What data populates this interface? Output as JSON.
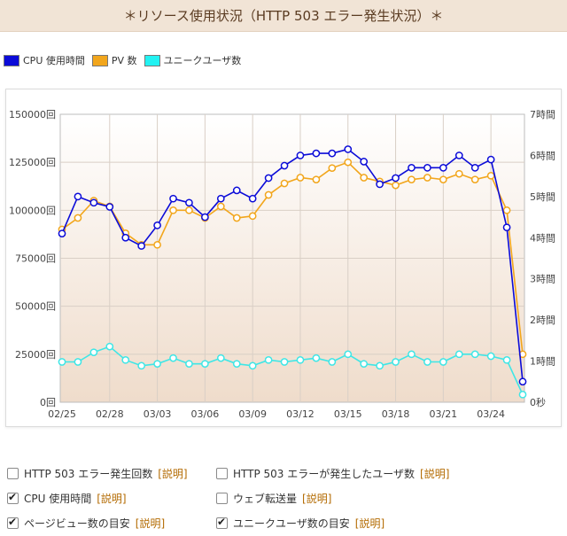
{
  "page_title": "＊リソース使用状況（HTTP 503 エラー発生状況）＊",
  "legend": [
    {
      "label": "CPU 使用時間",
      "color": "#0b0bd8"
    },
    {
      "label": "PV 数",
      "color": "#f2a61c"
    },
    {
      "label": "ユニークユーザ数",
      "color": "#22f2f2"
    }
  ],
  "chart_data": {
    "type": "line",
    "x": [
      "02/25",
      "02/26",
      "02/27",
      "02/28",
      "03/01",
      "03/02",
      "03/03",
      "03/04",
      "03/05",
      "03/06",
      "03/07",
      "03/08",
      "03/09",
      "03/10",
      "03/11",
      "03/12",
      "03/13",
      "03/14",
      "03/15",
      "03/16",
      "03/17",
      "03/18",
      "03/19",
      "03/20",
      "03/21",
      "03/22",
      "03/23",
      "03/24",
      "03/25",
      "03/26"
    ],
    "x_tick_labels": [
      "02/25",
      "02/28",
      "03/03",
      "03/06",
      "03/09",
      "03/12",
      "03/15",
      "03/18",
      "03/21",
      "03/24"
    ],
    "left_axis": {
      "ticks": [
        "0回",
        "25000回",
        "50000回",
        "75000回",
        "100000回",
        "125000回",
        "150000回"
      ],
      "ylim": [
        0,
        150000
      ]
    },
    "right_axis": {
      "ticks": [
        "0秒",
        "1時間",
        "2時間",
        "3時間",
        "4時間",
        "5時間",
        "6時間",
        "7時間"
      ],
      "ylim": [
        0,
        7
      ],
      "unit": "hours"
    },
    "series": [
      {
        "name": "CPU 使用時間",
        "axis": "right",
        "color": "#0b0bd8",
        "values": [
          4.1,
          5.0,
          4.85,
          4.75,
          4.0,
          3.8,
          4.3,
          4.95,
          4.85,
          4.5,
          4.95,
          5.15,
          4.95,
          5.45,
          5.75,
          6.0,
          6.05,
          6.05,
          6.15,
          5.85,
          5.3,
          5.45,
          5.7,
          5.7,
          5.7,
          6.0,
          5.7,
          5.9,
          4.25,
          0.5
        ]
      },
      {
        "name": "PV 数",
        "axis": "left",
        "color": "#f2a61c",
        "values": [
          90000,
          96000,
          105000,
          102000,
          88000,
          82000,
          82000,
          100000,
          100000,
          96000,
          102000,
          96000,
          97000,
          108000,
          114000,
          117000,
          116000,
          122000,
          125000,
          117000,
          115000,
          113000,
          116000,
          117000,
          116000,
          119000,
          116000,
          118000,
          100000,
          25000
        ]
      },
      {
        "name": "ユニークユーザ数",
        "axis": "left",
        "color": "#22f2f2",
        "values": [
          21000,
          21000,
          26000,
          29000,
          22000,
          19000,
          20000,
          23000,
          20000,
          20000,
          23000,
          20000,
          19000,
          22000,
          21000,
          22000,
          23000,
          21000,
          25000,
          20000,
          19000,
          21000,
          25000,
          21000,
          21000,
          25000,
          25000,
          24000,
          22000,
          4000
        ]
      }
    ]
  },
  "options": [
    {
      "label": "HTTP 503 エラー発生回数",
      "link": "[説明]",
      "checked": false
    },
    {
      "label": "HTTP 503 エラーが発生したユーザ数",
      "link": "[説明]",
      "checked": false
    },
    {
      "label": "CPU 使用時間",
      "link": "[説明]",
      "checked": true
    },
    {
      "label": "ウェブ転送量",
      "link": "[説明]",
      "checked": false
    },
    {
      "label": "ページビュー数の目安",
      "link": "[説明]",
      "checked": true
    },
    {
      "label": "ユニークユーザ数の目安",
      "link": "[説明]",
      "checked": true
    }
  ]
}
